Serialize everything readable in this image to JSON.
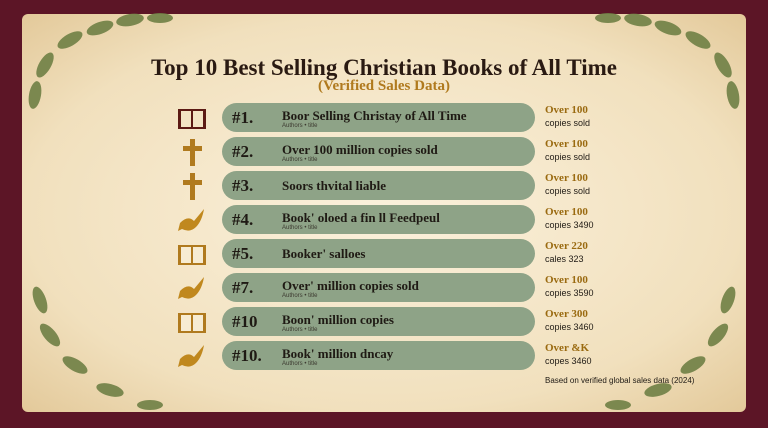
{
  "header": {
    "title": "Top 10 Best Selling Christian Books of All Time",
    "subtitle": "(Verified Sales Data)"
  },
  "rows": [
    {
      "rank": "#1.",
      "name": "Boor Selling Christay of All Time",
      "sub": "Authors • title",
      "stat": "Over 100",
      "detail": "copies sold"
    },
    {
      "rank": "#2.",
      "name": "Over 100 million copies sold",
      "sub": "Authors • title",
      "stat": "Over 100",
      "detail": "copies sold"
    },
    {
      "rank": "#3.",
      "name": "Soors thvital liable",
      "stat": "Over 100",
      "detail": "copies sold"
    },
    {
      "rank": "#4.",
      "name": "Book' oloed a fin ll Feedpeul",
      "sub": "Authors • title",
      "stat": "Over 100",
      "detail": "copies 3490"
    },
    {
      "rank": "#5.",
      "name": "Booker' salloes",
      "stat": "Over 220",
      "detail": "cales 323"
    },
    {
      "rank": "#7.",
      "name": "Over' million copies sold",
      "sub": "Authors • title",
      "stat": "Over 100",
      "detail": "copies 3590"
    },
    {
      "rank": "#10",
      "name": "Boon' million copies",
      "sub": "Authors • title",
      "stat": "Over 300",
      "detail": "copies 3460"
    },
    {
      "rank": "#10.",
      "name": "Book' million dncay",
      "sub": "Authors • title",
      "stat": "Over &K",
      "detail": "copes 3460"
    }
  ],
  "footer": "Based on verified global sales data (2024)"
}
